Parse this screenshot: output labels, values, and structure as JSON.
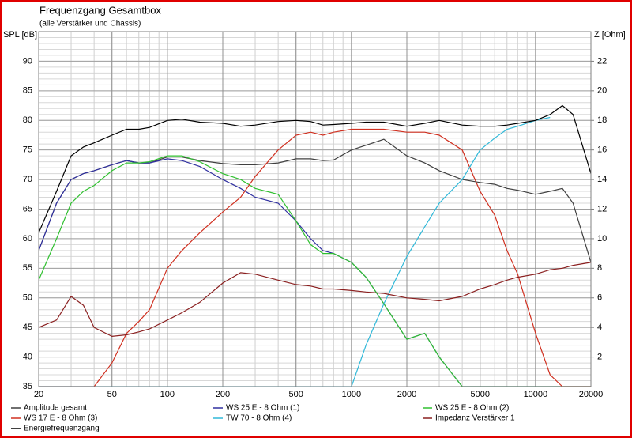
{
  "chart_data": {
    "type": "line",
    "title": "Frequenzgang Gesamtbox",
    "subtitle": "(alle Verstärker und Chassis)",
    "y_label": "SPL [dB]",
    "y2_label": "Z [Ohm]",
    "xscale": "log",
    "grid": true,
    "xlim": [
      20,
      20000
    ],
    "xticks": [
      20,
      50,
      100,
      200,
      500,
      1000,
      2000,
      5000,
      10000,
      20000
    ],
    "ylim": [
      35,
      95
    ],
    "yticks": [
      35,
      40,
      45,
      50,
      55,
      60,
      65,
      70,
      75,
      80,
      85,
      90
    ],
    "y2lim": [
      0,
      24
    ],
    "y2ticks": [
      2,
      4,
      6,
      8,
      10,
      12,
      14,
      16,
      18,
      20,
      22
    ],
    "x": [
      20,
      25,
      30,
      35,
      40,
      50,
      60,
      70,
      80,
      100,
      120,
      150,
      200,
      250,
      300,
      400,
      500,
      600,
      700,
      800,
      1000,
      1200,
      1500,
      2000,
      2500,
      3000,
      4000,
      5000,
      6000,
      7000,
      8000,
      10000,
      12000,
      14000,
      16000,
      20000
    ],
    "series": [
      {
        "name": "Amplitude gesamt",
        "color": "#404040",
        "values": [
          58,
          66,
          70,
          71,
          71.5,
          72.5,
          73.2,
          72.8,
          72.8,
          73.8,
          73.8,
          73.2,
          72.7,
          72.5,
          72.5,
          72.8,
          73.5,
          73.5,
          73.2,
          73.3,
          75,
          75.8,
          76.8,
          74,
          72.8,
          71.5,
          70,
          69.5,
          69.2,
          68.5,
          68.2,
          67.5,
          68,
          68.5,
          66,
          56
        ]
      },
      {
        "name": "WS 25 E - 8 Ohm (1)",
        "color": "#3030a0",
        "values": [
          58,
          66,
          70,
          71,
          71.5,
          72.5,
          73.2,
          72.8,
          72.8,
          73.5,
          73.2,
          72.2,
          70,
          68.5,
          67,
          66,
          63,
          60,
          58,
          57.5,
          56,
          53.5,
          49,
          43,
          44,
          40,
          35,
          35,
          35,
          35,
          35,
          35,
          35,
          35,
          35,
          35
        ]
      },
      {
        "name": "WS 25 E - 8 Ohm (2)",
        "color": "#30c030",
        "values": [
          53,
          60,
          66,
          68,
          69,
          71.5,
          72.8,
          72.8,
          73,
          74,
          74,
          73,
          71,
          70,
          68.5,
          67.5,
          63,
          59,
          57.5,
          57.5,
          56,
          53.5,
          49,
          43,
          44,
          40,
          35,
          35,
          35,
          35,
          35,
          35,
          35,
          35,
          35,
          35
        ]
      },
      {
        "name": "WS 17 E - 8 Ohm   (3)",
        "color": "#d03020",
        "values": [
          35,
          35,
          35,
          35,
          35,
          39,
          44,
          46,
          48,
          55,
          58,
          61,
          64.5,
          67,
          70.5,
          75,
          77.5,
          78,
          77.5,
          78,
          78.5,
          78.5,
          78.5,
          78,
          78,
          77.5,
          75,
          68,
          64,
          58,
          54,
          44,
          37,
          35,
          35,
          35
        ]
      },
      {
        "name": "TW 70 - 8 Ohm (4)",
        "color": "#30b8d8",
        "values": [
          35,
          35,
          35,
          35,
          35,
          35,
          35,
          35,
          35,
          35,
          35,
          35,
          35,
          35,
          35,
          35,
          35,
          35,
          35,
          35,
          35,
          42,
          49,
          57,
          62,
          66,
          70,
          75,
          77,
          78.5,
          79,
          80,
          80.5,
          null,
          null,
          null
        ]
      },
      {
        "name": "Impedanz Verstärker 1",
        "color": "#8b2020",
        "axis": "y2",
        "values": [
          4,
          4.5,
          6.1,
          5.5,
          4,
          3.4,
          3.5,
          3.7,
          3.9,
          4.5,
          5,
          5.7,
          7,
          7.7,
          7.6,
          7.2,
          6.9,
          6.8,
          6.6,
          6.6,
          6.5,
          6.4,
          6.3,
          6,
          5.9,
          5.8,
          6.1,
          6.6,
          6.9,
          7.2,
          7.4,
          7.6,
          7.9,
          8,
          8.2,
          8.4
        ]
      },
      {
        "name": "Energiefrequenzgang",
        "color": "#000000",
        "values": [
          61,
          68,
          74,
          75.5,
          76.2,
          77.5,
          78.5,
          78.5,
          78.8,
          80,
          80.2,
          79.7,
          79.5,
          79,
          79.2,
          79.8,
          80,
          79.8,
          79.2,
          79.3,
          79.5,
          79.7,
          79.7,
          79,
          79.5,
          80,
          79.2,
          79,
          79,
          79.2,
          79.5,
          80,
          81,
          82.5,
          81,
          71
        ]
      }
    ]
  }
}
